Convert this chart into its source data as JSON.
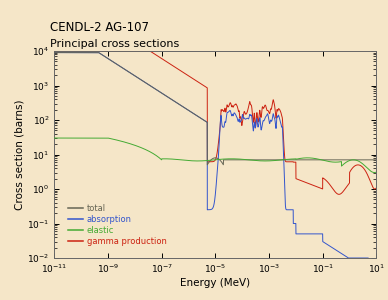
{
  "title_line1": "CENDL-2 AG-107",
  "title_line2": "Principal cross sections",
  "xlabel": "Energy (MeV)",
  "ylabel": "Cross section (barns)",
  "background_color": "#f5e6c8",
  "legend_entries": [
    "total",
    "absorption",
    "elastic",
    "gamma production"
  ],
  "legend_colors": [
    "#666655",
    "#3355cc",
    "#44aa33",
    "#cc2211"
  ],
  "line_colors": {
    "total": "#666655",
    "absorption": "#3355cc",
    "elastic": "#44aa33",
    "gamma": "#cc2211"
  }
}
